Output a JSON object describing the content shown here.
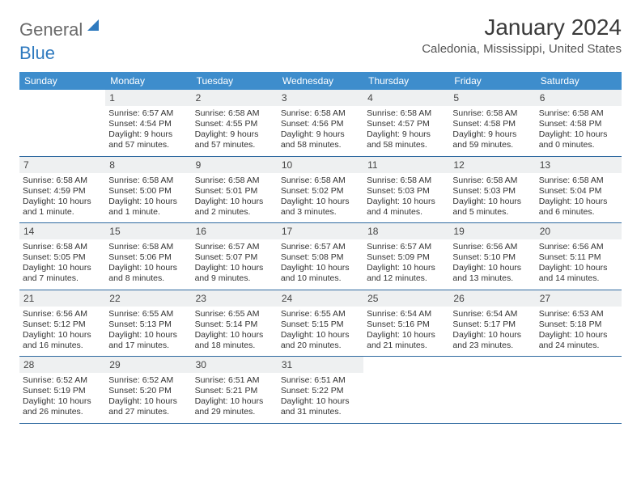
{
  "logo": {
    "text_gray": "General",
    "text_blue": "Blue"
  },
  "header": {
    "month_title": "January 2024",
    "location": "Caledonia, Mississippi, United States"
  },
  "day_labels": [
    "Sunday",
    "Monday",
    "Tuesday",
    "Wednesday",
    "Thursday",
    "Friday",
    "Saturday"
  ],
  "colors": {
    "header_bg": "#3e8dcc",
    "header_text": "#ffffff",
    "daynum_bg": "#eef0f1",
    "week_border": "#2f6aa0",
    "body_text": "#333333"
  },
  "weeks": [
    [
      {
        "n": "",
        "sunrise": "",
        "sunset": "",
        "daylight": ""
      },
      {
        "n": "1",
        "sunrise": "Sunrise: 6:57 AM",
        "sunset": "Sunset: 4:54 PM",
        "daylight": "Daylight: 9 hours and 57 minutes."
      },
      {
        "n": "2",
        "sunrise": "Sunrise: 6:58 AM",
        "sunset": "Sunset: 4:55 PM",
        "daylight": "Daylight: 9 hours and 57 minutes."
      },
      {
        "n": "3",
        "sunrise": "Sunrise: 6:58 AM",
        "sunset": "Sunset: 4:56 PM",
        "daylight": "Daylight: 9 hours and 58 minutes."
      },
      {
        "n": "4",
        "sunrise": "Sunrise: 6:58 AM",
        "sunset": "Sunset: 4:57 PM",
        "daylight": "Daylight: 9 hours and 58 minutes."
      },
      {
        "n": "5",
        "sunrise": "Sunrise: 6:58 AM",
        "sunset": "Sunset: 4:58 PM",
        "daylight": "Daylight: 9 hours and 59 minutes."
      },
      {
        "n": "6",
        "sunrise": "Sunrise: 6:58 AM",
        "sunset": "Sunset: 4:58 PM",
        "daylight": "Daylight: 10 hours and 0 minutes."
      }
    ],
    [
      {
        "n": "7",
        "sunrise": "Sunrise: 6:58 AM",
        "sunset": "Sunset: 4:59 PM",
        "daylight": "Daylight: 10 hours and 1 minute."
      },
      {
        "n": "8",
        "sunrise": "Sunrise: 6:58 AM",
        "sunset": "Sunset: 5:00 PM",
        "daylight": "Daylight: 10 hours and 1 minute."
      },
      {
        "n": "9",
        "sunrise": "Sunrise: 6:58 AM",
        "sunset": "Sunset: 5:01 PM",
        "daylight": "Daylight: 10 hours and 2 minutes."
      },
      {
        "n": "10",
        "sunrise": "Sunrise: 6:58 AM",
        "sunset": "Sunset: 5:02 PM",
        "daylight": "Daylight: 10 hours and 3 minutes."
      },
      {
        "n": "11",
        "sunrise": "Sunrise: 6:58 AM",
        "sunset": "Sunset: 5:03 PM",
        "daylight": "Daylight: 10 hours and 4 minutes."
      },
      {
        "n": "12",
        "sunrise": "Sunrise: 6:58 AM",
        "sunset": "Sunset: 5:03 PM",
        "daylight": "Daylight: 10 hours and 5 minutes."
      },
      {
        "n": "13",
        "sunrise": "Sunrise: 6:58 AM",
        "sunset": "Sunset: 5:04 PM",
        "daylight": "Daylight: 10 hours and 6 minutes."
      }
    ],
    [
      {
        "n": "14",
        "sunrise": "Sunrise: 6:58 AM",
        "sunset": "Sunset: 5:05 PM",
        "daylight": "Daylight: 10 hours and 7 minutes."
      },
      {
        "n": "15",
        "sunrise": "Sunrise: 6:58 AM",
        "sunset": "Sunset: 5:06 PM",
        "daylight": "Daylight: 10 hours and 8 minutes."
      },
      {
        "n": "16",
        "sunrise": "Sunrise: 6:57 AM",
        "sunset": "Sunset: 5:07 PM",
        "daylight": "Daylight: 10 hours and 9 minutes."
      },
      {
        "n": "17",
        "sunrise": "Sunrise: 6:57 AM",
        "sunset": "Sunset: 5:08 PM",
        "daylight": "Daylight: 10 hours and 10 minutes."
      },
      {
        "n": "18",
        "sunrise": "Sunrise: 6:57 AM",
        "sunset": "Sunset: 5:09 PM",
        "daylight": "Daylight: 10 hours and 12 minutes."
      },
      {
        "n": "19",
        "sunrise": "Sunrise: 6:56 AM",
        "sunset": "Sunset: 5:10 PM",
        "daylight": "Daylight: 10 hours and 13 minutes."
      },
      {
        "n": "20",
        "sunrise": "Sunrise: 6:56 AM",
        "sunset": "Sunset: 5:11 PM",
        "daylight": "Daylight: 10 hours and 14 minutes."
      }
    ],
    [
      {
        "n": "21",
        "sunrise": "Sunrise: 6:56 AM",
        "sunset": "Sunset: 5:12 PM",
        "daylight": "Daylight: 10 hours and 16 minutes."
      },
      {
        "n": "22",
        "sunrise": "Sunrise: 6:55 AM",
        "sunset": "Sunset: 5:13 PM",
        "daylight": "Daylight: 10 hours and 17 minutes."
      },
      {
        "n": "23",
        "sunrise": "Sunrise: 6:55 AM",
        "sunset": "Sunset: 5:14 PM",
        "daylight": "Daylight: 10 hours and 18 minutes."
      },
      {
        "n": "24",
        "sunrise": "Sunrise: 6:55 AM",
        "sunset": "Sunset: 5:15 PM",
        "daylight": "Daylight: 10 hours and 20 minutes."
      },
      {
        "n": "25",
        "sunrise": "Sunrise: 6:54 AM",
        "sunset": "Sunset: 5:16 PM",
        "daylight": "Daylight: 10 hours and 21 minutes."
      },
      {
        "n": "26",
        "sunrise": "Sunrise: 6:54 AM",
        "sunset": "Sunset: 5:17 PM",
        "daylight": "Daylight: 10 hours and 23 minutes."
      },
      {
        "n": "27",
        "sunrise": "Sunrise: 6:53 AM",
        "sunset": "Sunset: 5:18 PM",
        "daylight": "Daylight: 10 hours and 24 minutes."
      }
    ],
    [
      {
        "n": "28",
        "sunrise": "Sunrise: 6:52 AM",
        "sunset": "Sunset: 5:19 PM",
        "daylight": "Daylight: 10 hours and 26 minutes."
      },
      {
        "n": "29",
        "sunrise": "Sunrise: 6:52 AM",
        "sunset": "Sunset: 5:20 PM",
        "daylight": "Daylight: 10 hours and 27 minutes."
      },
      {
        "n": "30",
        "sunrise": "Sunrise: 6:51 AM",
        "sunset": "Sunset: 5:21 PM",
        "daylight": "Daylight: 10 hours and 29 minutes."
      },
      {
        "n": "31",
        "sunrise": "Sunrise: 6:51 AM",
        "sunset": "Sunset: 5:22 PM",
        "daylight": "Daylight: 10 hours and 31 minutes."
      },
      {
        "n": "",
        "sunrise": "",
        "sunset": "",
        "daylight": ""
      },
      {
        "n": "",
        "sunrise": "",
        "sunset": "",
        "daylight": ""
      },
      {
        "n": "",
        "sunrise": "",
        "sunset": "",
        "daylight": ""
      }
    ]
  ]
}
